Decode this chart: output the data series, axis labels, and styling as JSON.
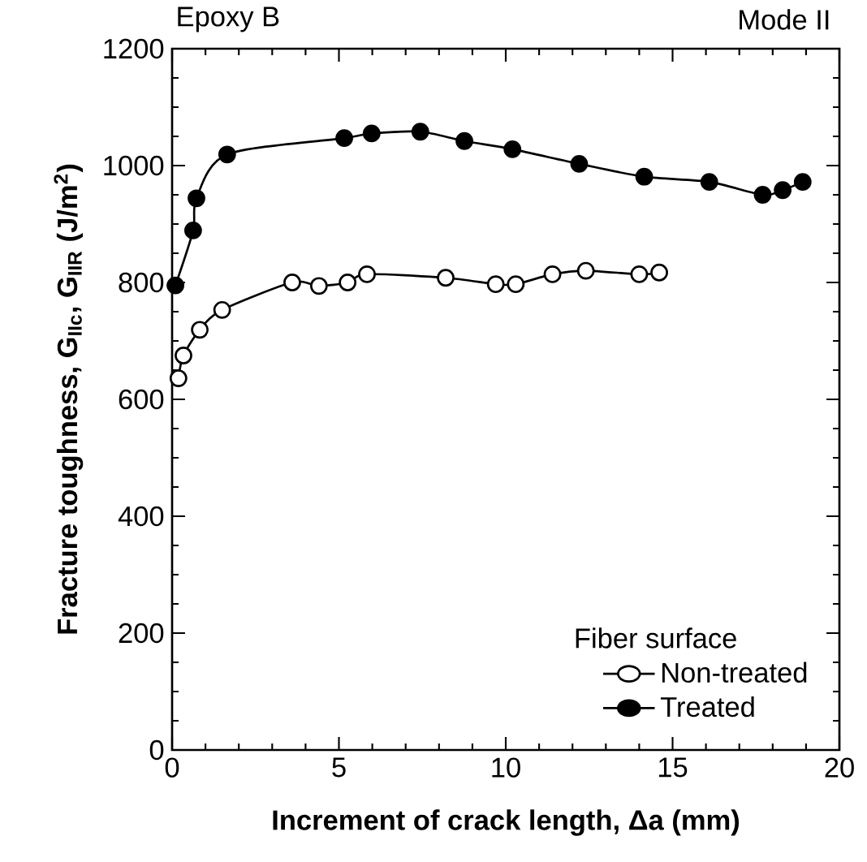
{
  "chart_data": {
    "type": "line",
    "annotations": [
      "Epoxy B",
      "Mode II"
    ],
    "xlabel": "Increment of crack length, Δa (mm)",
    "ylabel": "Fracture toughness, G$_{IIc}$,  G$_{IIR}$ (J/m$^{2}$)",
    "legend_title": "Fiber surface",
    "series": [
      {
        "name": "Non-treated",
        "color": "#000000",
        "x": [
          0.19,
          0.34,
          0.83,
          1.5,
          3.6,
          4.4,
          5.26,
          5.84,
          8.2,
          9.7,
          10.3,
          11.4,
          12.4,
          14.0,
          14.6
        ],
        "values": [
          636,
          675,
          719,
          753,
          800,
          794,
          800,
          814,
          808,
          797,
          797,
          814,
          820,
          814,
          817
        ]
      },
      {
        "name": "Treated",
        "color": "#000000",
        "x": [
          0.1,
          0.63,
          0.73,
          1.65,
          5.16,
          5.98,
          7.44,
          8.76,
          10.2,
          12.2,
          14.15,
          16.1,
          17.7,
          18.3,
          18.9
        ],
        "values": [
          795,
          889,
          944,
          1019,
          1047,
          1055,
          1058,
          1042,
          1028,
          1003,
          981,
          972,
          950,
          958,
          972
        ]
      }
    ],
    "xlim": [
      0,
      20
    ],
    "ylim": [
      0,
      1200
    ],
    "xticks": [
      0,
      5,
      10,
      15,
      20
    ],
    "yticks": [
      0,
      200,
      400,
      600,
      800,
      1000,
      1200
    ],
    "grid": false,
    "legend": "bottom right",
    "marker": "circle",
    "line_style": "solid"
  }
}
